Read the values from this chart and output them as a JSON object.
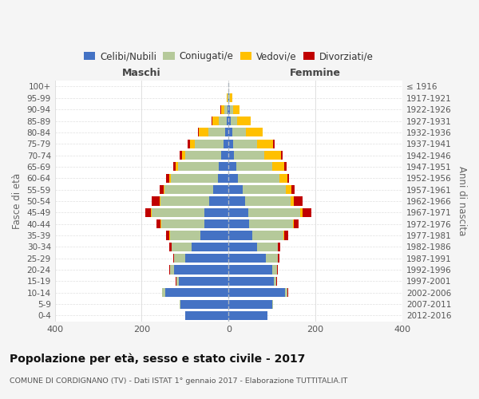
{
  "age_groups": [
    "0-4",
    "5-9",
    "10-14",
    "15-19",
    "20-24",
    "25-29",
    "30-34",
    "35-39",
    "40-44",
    "45-49",
    "50-54",
    "55-59",
    "60-64",
    "65-69",
    "70-74",
    "75-79",
    "80-84",
    "85-89",
    "90-94",
    "95-99",
    "100+"
  ],
  "birth_years": [
    "2012-2016",
    "2007-2011",
    "2002-2006",
    "1997-2001",
    "1992-1996",
    "1987-1991",
    "1982-1986",
    "1977-1981",
    "1972-1976",
    "1967-1971",
    "1962-1966",
    "1957-1961",
    "1952-1956",
    "1947-1951",
    "1942-1946",
    "1937-1941",
    "1932-1936",
    "1927-1931",
    "1922-1926",
    "1917-1921",
    "≤ 1916"
  ],
  "males_celibi": [
    100,
    110,
    145,
    115,
    125,
    100,
    85,
    65,
    55,
    55,
    45,
    35,
    25,
    22,
    18,
    12,
    8,
    5,
    2,
    1,
    0
  ],
  "males_coniugati": [
    0,
    2,
    8,
    5,
    10,
    25,
    46,
    70,
    100,
    122,
    112,
    112,
    108,
    95,
    82,
    65,
    38,
    18,
    8,
    2,
    0
  ],
  "males_vedovi": [
    0,
    0,
    0,
    0,
    0,
    0,
    0,
    1,
    1,
    2,
    2,
    2,
    3,
    5,
    8,
    12,
    22,
    15,
    8,
    2,
    0
  ],
  "males_divorziati": [
    0,
    0,
    1,
    1,
    2,
    3,
    5,
    8,
    10,
    12,
    18,
    10,
    8,
    5,
    5,
    5,
    2,
    1,
    1,
    0,
    0
  ],
  "females_nubili": [
    90,
    100,
    130,
    105,
    100,
    85,
    65,
    55,
    48,
    45,
    38,
    32,
    22,
    18,
    12,
    10,
    8,
    5,
    3,
    2,
    0
  ],
  "females_coniugate": [
    0,
    2,
    6,
    5,
    12,
    28,
    48,
    72,
    100,
    120,
    105,
    100,
    95,
    82,
    70,
    55,
    32,
    15,
    8,
    2,
    0
  ],
  "females_vedove": [
    0,
    0,
    0,
    0,
    0,
    0,
    1,
    2,
    3,
    5,
    8,
    12,
    18,
    28,
    38,
    38,
    38,
    30,
    15,
    5,
    0
  ],
  "females_divorziate": [
    0,
    0,
    1,
    1,
    2,
    4,
    5,
    8,
    10,
    20,
    20,
    8,
    5,
    5,
    5,
    3,
    1,
    1,
    0,
    0,
    0
  ],
  "color_celibi": "#4472C4",
  "color_coniugati": "#b5c99a",
  "color_vedovi": "#ffc000",
  "color_divorziati": "#c00000",
  "xlim": 400,
  "title": "Popolazione per età, sesso e stato civile - 2017",
  "subtitle": "COMUNE DI CORDIGNANO (TV) - Dati ISTAT 1° gennaio 2017 - Elaborazione TUTTITALIA.IT",
  "ylabel_left": "Fasce di età",
  "ylabel_right": "Anni di nascita",
  "xlabel_maschi": "Maschi",
  "xlabel_femmine": "Femmine",
  "bg_color": "#f5f5f5",
  "plot_bg": "#ffffff",
  "legend_labels": [
    "Celibi/Nubili",
    "Coniugati/e",
    "Vedovi/e",
    "Divorziati/e"
  ]
}
